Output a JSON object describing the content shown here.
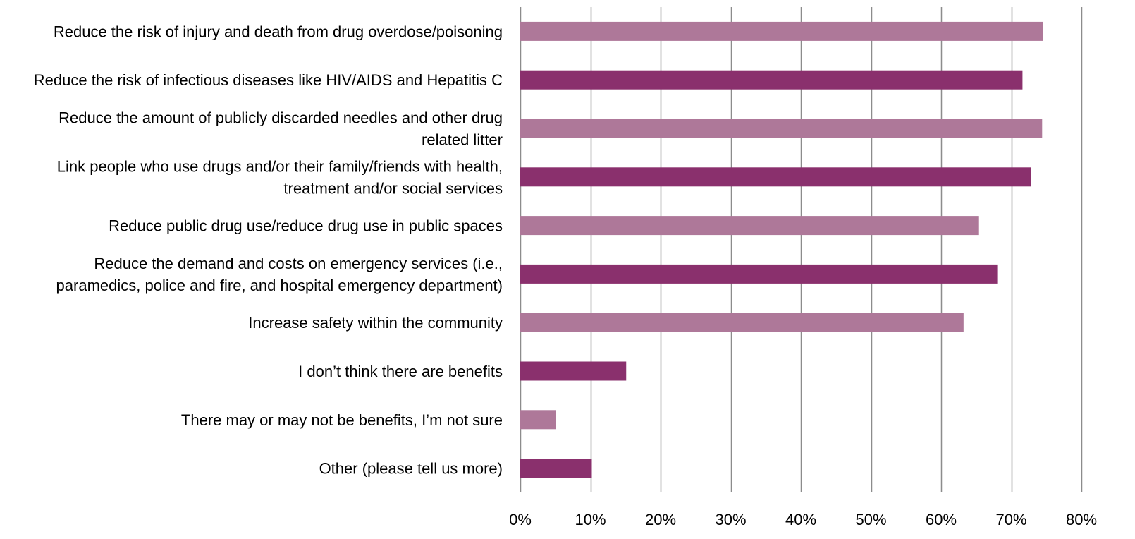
{
  "chart_data": {
    "type": "bar",
    "orientation": "horizontal",
    "title": "",
    "xlabel": "",
    "ylabel": "",
    "xlim": [
      0,
      80
    ],
    "x_ticks": [
      0,
      10,
      20,
      30,
      40,
      50,
      60,
      70,
      80
    ],
    "x_tick_labels": [
      "0%",
      "10%",
      "20%",
      "30%",
      "40%",
      "50%",
      "60%",
      "70%",
      "80%"
    ],
    "grid": "vertical",
    "legend": "none",
    "colors": {
      "light": "#ae7899",
      "dark": "#8a306d",
      "grid": "#8c8c8c",
      "text": "#000000"
    },
    "categories": [
      "Reduce the risk of injury and death from drug overdose/poisoning",
      "Reduce the risk of infectious diseases like HIV/AIDS and Hepatitis C",
      "Reduce the amount of publicly discarded needles and other drug related litter",
      "Link people who use drugs and/or their family/friends with health, treatment and/or social services",
      "Reduce public drug use/reduce drug use in public spaces",
      "Reduce the demand and costs on emergency services (i.e., paramedics, police and fire, and hospital emergency department)",
      "Increase safety within the community",
      "I don’t think there are benefits",
      "There may or may not be benefits, I’m not sure",
      "Other (please tell us more)"
    ],
    "category_label_lines": [
      [
        "Reduce the risk of injury and death from drug overdose/poisoning"
      ],
      [
        "Reduce the risk of infectious diseases like HIV/AIDS and Hepatitis C"
      ],
      [
        "Reduce the amount of publicly discarded needles and other drug",
        "related litter"
      ],
      [
        "Link people who use drugs and/or their family/friends with health,",
        "treatment and/or social services"
      ],
      [
        "Reduce public drug use/reduce drug use in public spaces"
      ],
      [
        "Reduce the demand and costs on emergency services (i.e.,",
        "paramedics, police and fire, and hospital emergency department)"
      ],
      [
        "Increase safety within the community"
      ],
      [
        "I don’t think there are benefits"
      ],
      [
        "There may or may not be benefits, I’m not sure"
      ],
      [
        "Other (please tell us more)"
      ]
    ],
    "values": [
      74.5,
      71.6,
      74.4,
      72.8,
      65.4,
      68.0,
      63.2,
      15.1,
      5.1,
      10.2
    ],
    "bar_color_keys": [
      "light",
      "dark",
      "light",
      "dark",
      "light",
      "dark",
      "light",
      "dark",
      "light",
      "dark"
    ]
  }
}
